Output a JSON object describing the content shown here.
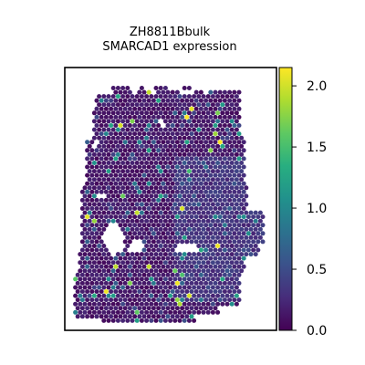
{
  "chart_data": {
    "type": "heatmap",
    "title_lines": [
      "ZH8811Bbulk",
      "SMARCAD1 expression"
    ],
    "colormap": "viridis",
    "colorbar": {
      "vmin": 0.0,
      "vmax": 2.15,
      "ticks": [
        0.0,
        0.5,
        1.0,
        1.5,
        2.0
      ],
      "tick_labels": [
        "0.0",
        "0.5",
        "1.0",
        "1.5",
        "2.0"
      ]
    },
    "axes_visible": false,
    "grid": false
  }
}
